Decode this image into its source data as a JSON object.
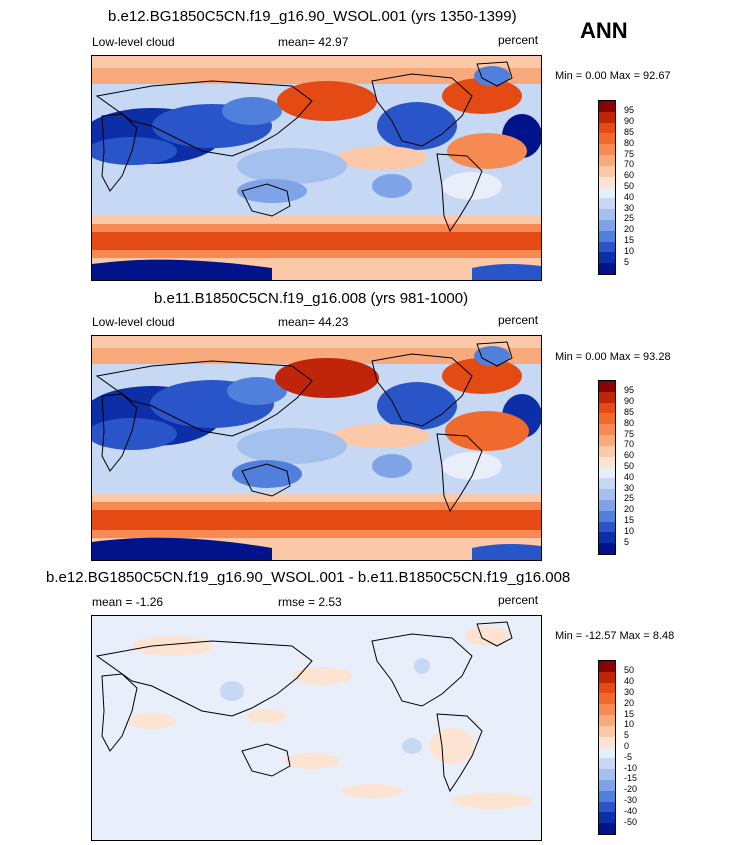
{
  "season": "ANN",
  "panels": [
    {
      "title": "b.e12.BG1850C5CN.f19_g16.90_WSOL.001 (yrs 1350-1399)",
      "left_label": "Low-level cloud",
      "center_label": "mean=  42.97",
      "right_label": "percent",
      "minmax": "Min =   0.00 Max =  92.67",
      "colorbar": {
        "labels": [
          "95",
          "90",
          "85",
          "80",
          "75",
          "70",
          "60",
          "50",
          "40",
          "30",
          "25",
          "20",
          "15",
          "10",
          "5"
        ],
        "colors": [
          "#8b0000",
          "#c0250a",
          "#e34a14",
          "#f16a2d",
          "#f68a52",
          "#f9aa7c",
          "#fcc9a8",
          "#fde4d2",
          "#e8effa",
          "#c6d8f4",
          "#a4c1ee",
          "#7ea3e6",
          "#5180dc",
          "#2a55c8",
          "#0c2fa8",
          "#00138a"
        ]
      }
    },
    {
      "title": "b.e11.B1850C5CN.f19_g16.008 (yrs 981-1000)",
      "left_label": "Low-level cloud",
      "center_label": "mean=  44.23",
      "right_label": "percent",
      "minmax": "Min =   0.00 Max =  93.28",
      "colorbar": {
        "labels": [
          "95",
          "90",
          "85",
          "80",
          "75",
          "70",
          "60",
          "50",
          "40",
          "30",
          "25",
          "20",
          "15",
          "10",
          "5"
        ],
        "colors": [
          "#8b0000",
          "#c0250a",
          "#e34a14",
          "#f16a2d",
          "#f68a52",
          "#f9aa7c",
          "#fcc9a8",
          "#fde4d2",
          "#e8effa",
          "#c6d8f4",
          "#a4c1ee",
          "#7ea3e6",
          "#5180dc",
          "#2a55c8",
          "#0c2fa8",
          "#00138a"
        ]
      }
    },
    {
      "title": "b.e12.BG1850C5CN.f19_g16.90_WSOL.001 - b.e11.B1850C5CN.f19_g16.008",
      "left_label": "mean =  -1.26",
      "center_label": "rmse =   2.53",
      "right_label": "percent",
      "minmax": "Min = -12.57 Max =   8.48",
      "colorbar": {
        "labels": [
          "50",
          "40",
          "30",
          "20",
          "15",
          "10",
          "5",
          "0",
          "-5",
          "-10",
          "-15",
          "-20",
          "-30",
          "-40",
          "-50"
        ],
        "colors": [
          "#8b0000",
          "#c0250a",
          "#e34a14",
          "#f16a2d",
          "#f68a52",
          "#f9aa7c",
          "#fcc9a8",
          "#fde4d2",
          "#e8effa",
          "#c6d8f4",
          "#a4c1ee",
          "#7ea3e6",
          "#5180dc",
          "#2a55c8",
          "#0c2fa8",
          "#00138a"
        ]
      }
    }
  ]
}
